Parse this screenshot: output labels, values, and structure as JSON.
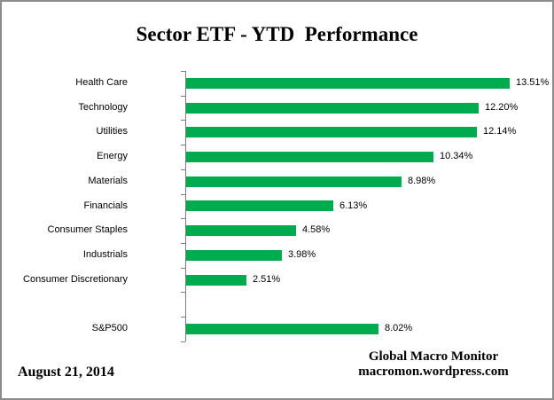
{
  "title": "Sector ETF - YTD  Performance",
  "footer": {
    "date": "August 21, 2014",
    "source_line1": "Global Macro Monitor",
    "source_line2": "macromon.wordpress.com"
  },
  "colors": {
    "bar": "#00ab4f",
    "axis": "#7f7f7f",
    "text": "#000000",
    "border": "#8c8c8c"
  },
  "chart_data": {
    "type": "bar",
    "orientation": "horizontal",
    "title": "Sector ETF - YTD  Performance",
    "categories": [
      "Health Care",
      "Technology",
      "Utilities",
      "Energy",
      "Materials",
      "Financials",
      "Consumer Staples",
      "Industrials",
      "Consumer Discretionary",
      "",
      "S&P500"
    ],
    "values": [
      13.51,
      12.2,
      12.14,
      10.34,
      8.98,
      6.13,
      4.58,
      3.98,
      2.51,
      null,
      8.02
    ],
    "value_labels": [
      "13.51%",
      "12.20%",
      "12.14%",
      "10.34%",
      "8.98%",
      "6.13%",
      "4.58%",
      "3.98%",
      "2.51%",
      "",
      "8.02%"
    ],
    "xlabel": "",
    "ylabel": "",
    "xlim": [
      0,
      15
    ],
    "grid": false,
    "legend": false,
    "bar_color": "#00ab4f"
  }
}
